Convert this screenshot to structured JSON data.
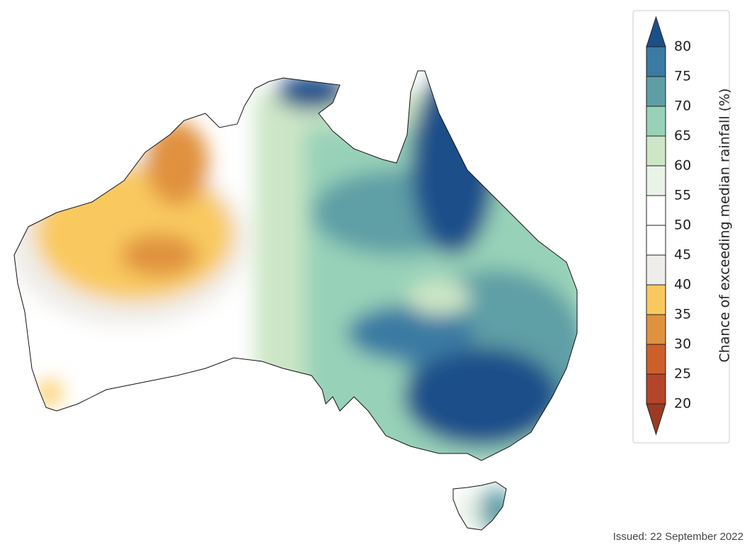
{
  "colorbar": {
    "label": "Chance of exceeding median rainfall (%)",
    "ticks": [
      20,
      25,
      30,
      35,
      40,
      45,
      50,
      55,
      60,
      65,
      70,
      75,
      80
    ],
    "colors": [
      "#9a3b22",
      "#b5452a",
      "#cc5f2c",
      "#e0913e",
      "#f9c95f",
      "#efedea",
      "#ffffff",
      "#ffffff",
      "#e9f3e8",
      "#cce6c6",
      "#97d1b8",
      "#5e9fa6",
      "#3b7aa3",
      "#1a4f8a"
    ]
  },
  "issued": "Issued: 22 September 2022"
}
